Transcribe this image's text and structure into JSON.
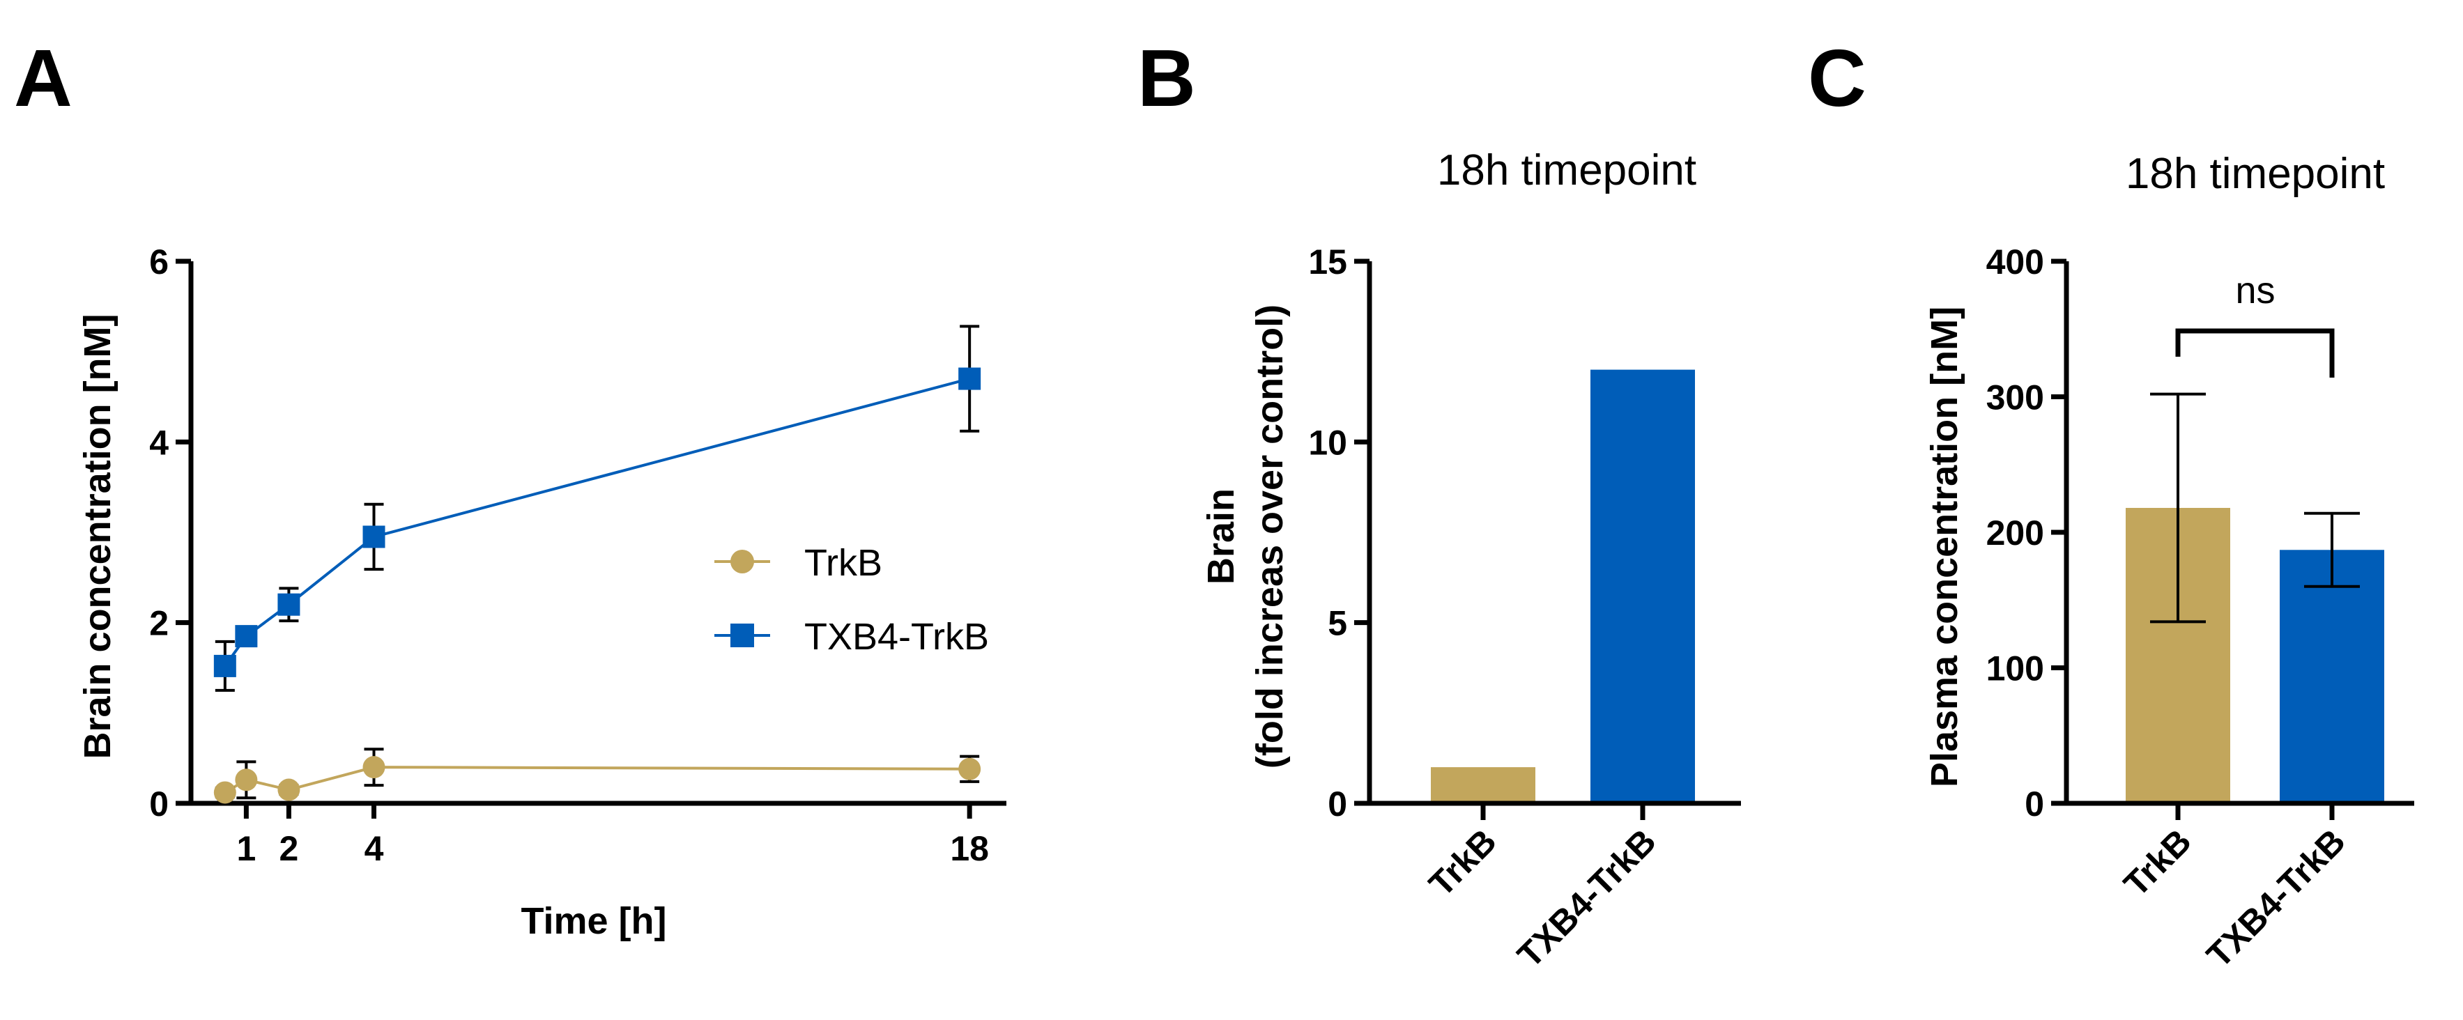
{
  "colors": {
    "trkb": "#c2a65c",
    "txb4": "#005db8",
    "axis": "#000000"
  },
  "chart_data": [
    {
      "panel": "A",
      "type": "line",
      "title": "",
      "xlabel": "Time [h]",
      "ylabel": "Brain concentration [nM]",
      "xlim": [
        -0.3,
        18.8
      ],
      "ylim": [
        0,
        6
      ],
      "xticks": [
        1,
        2,
        4,
        18
      ],
      "yticks": [
        0,
        2,
        4,
        6
      ],
      "legend_position": "center-right",
      "series": [
        {
          "name": "TrkB",
          "marker": "circle",
          "color": "#c2a65c",
          "x": [
            0.5,
            1,
            2,
            4,
            18
          ],
          "y": [
            0.12,
            0.26,
            0.15,
            0.4,
            0.38
          ],
          "err": [
            0.05,
            0.2,
            0.05,
            0.2,
            0.14
          ]
        },
        {
          "name": "TXB4-TrkB",
          "marker": "square",
          "color": "#005db8",
          "x": [
            0.5,
            1,
            2,
            4,
            18
          ],
          "y": [
            1.52,
            1.85,
            2.2,
            2.95,
            4.7
          ],
          "err": [
            0.27,
            0.05,
            0.18,
            0.36,
            0.58
          ]
        }
      ]
    },
    {
      "panel": "B",
      "type": "bar",
      "title": "18h timepoint",
      "ylabel": "Brain",
      "ylabel2": "(fold increas over control)",
      "ylim": [
        0,
        15
      ],
      "yticks": [
        0,
        5,
        10,
        15
      ],
      "categories": [
        "TrkB",
        "TXB4-TrkB"
      ],
      "values": [
        1,
        12
      ],
      "colors": [
        "#c2a65c",
        "#005db8"
      ]
    },
    {
      "panel": "C",
      "type": "bar",
      "title": "18h timepoint",
      "ylabel": "Plasma concentration [nM]",
      "ylim": [
        0,
        400
      ],
      "yticks": [
        0,
        100,
        200,
        300,
        400
      ],
      "categories": [
        "TrkB",
        "TXB4-TrkB"
      ],
      "values": [
        218,
        187
      ],
      "err": [
        84,
        27
      ],
      "colors": [
        "#c2a65c",
        "#005db8"
      ],
      "significance": "ns"
    }
  ]
}
